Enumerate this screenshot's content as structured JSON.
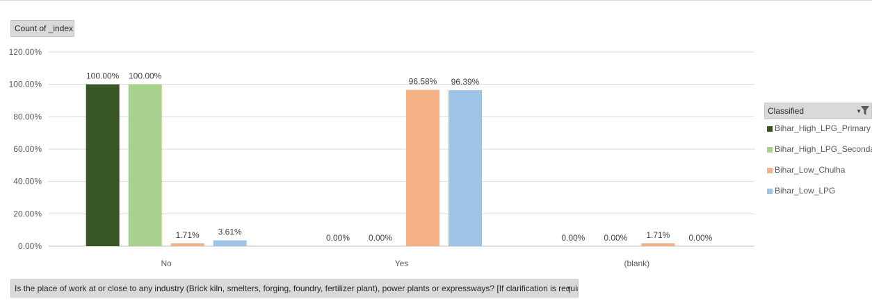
{
  "value_field": {
    "label": "Count of _index"
  },
  "axis_field": {
    "label": "Is the place of work at or close to any industry (Brick kiln, smelters, forging, foundry, fertilizer plant), power plants or expressways? [If clarification is required,..."
  },
  "legend": {
    "title": "Classified"
  },
  "chart_data": {
    "type": "bar",
    "categories": [
      "No",
      "Yes",
      "(blank)"
    ],
    "series": [
      {
        "name": "Bihar_High_LPG_Primary",
        "color": "#375623",
        "values": [
          100.0,
          0.0,
          0.0
        ],
        "labels": [
          "100.00%",
          "0.00%",
          "0.00%"
        ]
      },
      {
        "name": "Bihar_High_LPG_Secondary",
        "color": "#a9d18e",
        "values": [
          100.0,
          0.0,
          0.0
        ],
        "labels": [
          "100.00%",
          "0.00%",
          "0.00%"
        ]
      },
      {
        "name": "Bihar_Low_Chulha",
        "color": "#f4b183",
        "values": [
          1.71,
          96.58,
          1.71
        ],
        "labels": [
          "1.71%",
          "96.58%",
          "1.71%"
        ]
      },
      {
        "name": "Bihar_Low_LPG",
        "color": "#9dc3e6",
        "values": [
          3.61,
          96.39,
          0.0
        ],
        "labels": [
          "3.61%",
          "96.39%",
          "0.00%"
        ]
      }
    ],
    "yticks": [
      "0.00%",
      "20.00%",
      "40.00%",
      "60.00%",
      "80.00%",
      "100.00%",
      "120.00%"
    ],
    "ylim": [
      0,
      120
    ],
    "grid": true,
    "legend_position": "right"
  }
}
